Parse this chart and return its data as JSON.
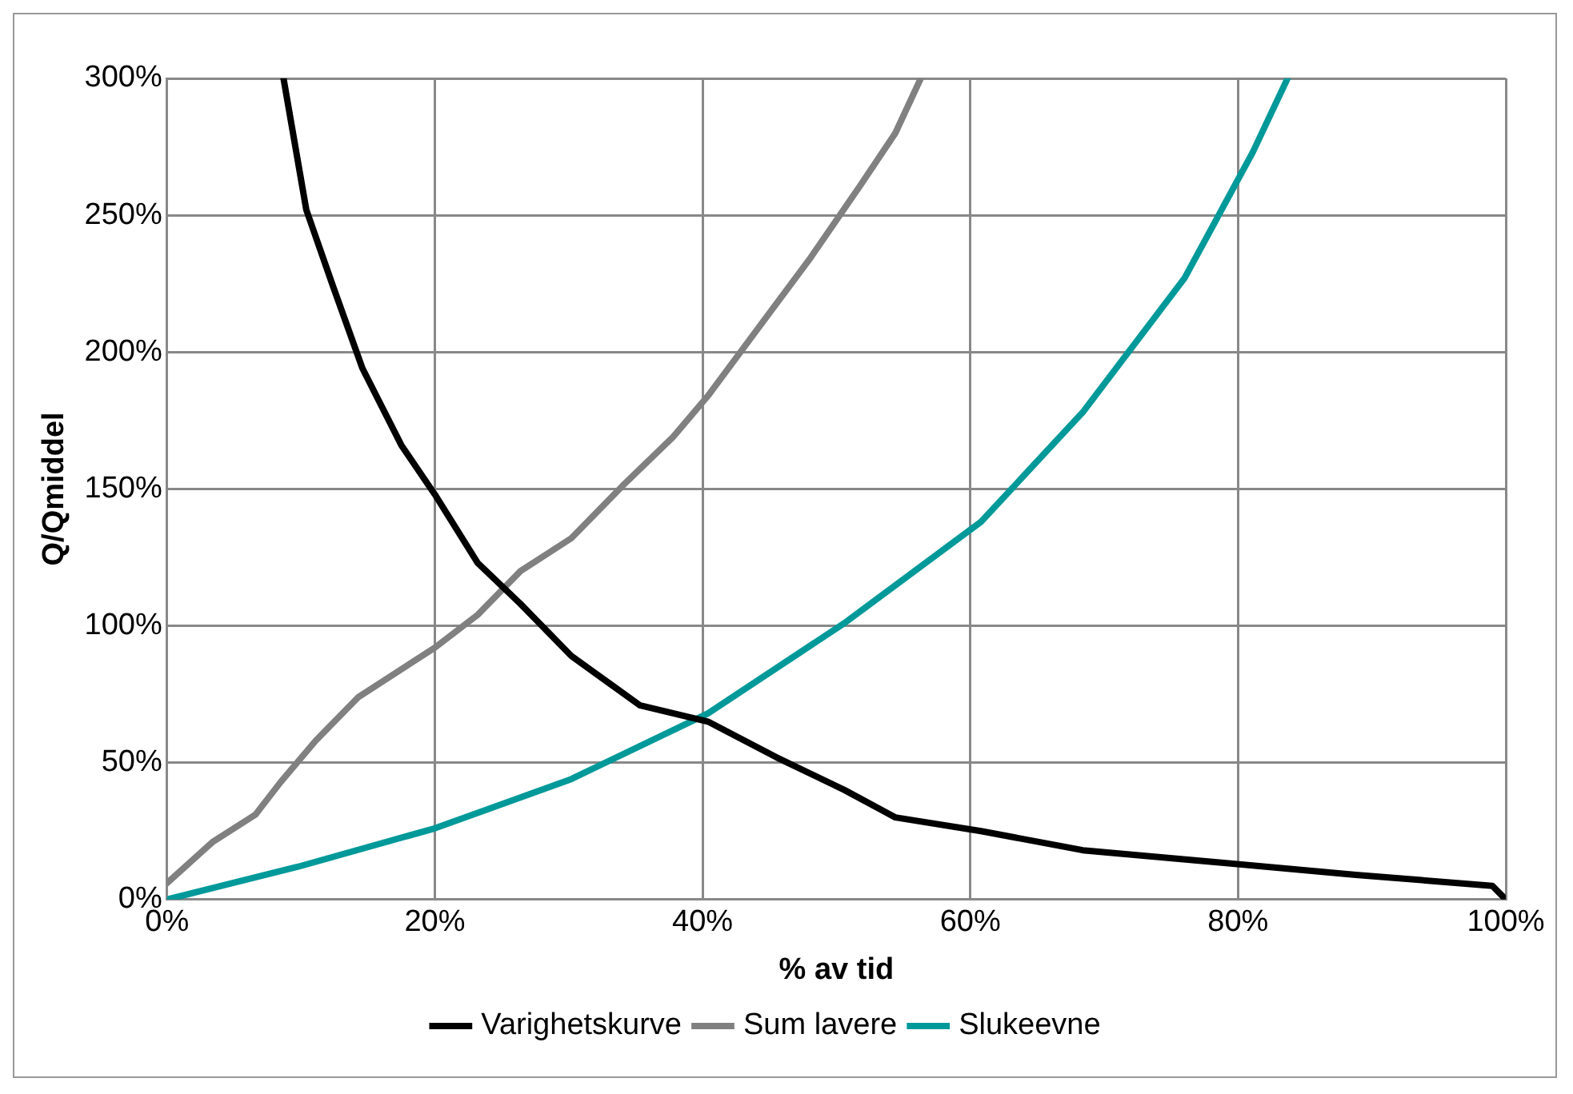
{
  "chart_data": {
    "type": "line",
    "xlabel": "% av tid",
    "ylabel": "Q/Qmiddel",
    "xlim": [
      0,
      100
    ],
    "xticks": [
      {
        "value": 0,
        "label": "0%"
      },
      {
        "value": 20,
        "label": "20%"
      },
      {
        "value": 40,
        "label": "40%"
      },
      {
        "value": 60,
        "label": "60%"
      },
      {
        "value": 80,
        "label": "80%"
      },
      {
        "value": 100,
        "label": "100%"
      }
    ],
    "ylim": [
      0,
      300
    ],
    "yticks": [
      {
        "value": 0,
        "label": "0%"
      },
      {
        "value": 50,
        "label": "50%"
      },
      {
        "value": 100,
        "label": "100%"
      },
      {
        "value": 150,
        "label": "150%"
      },
      {
        "value": 200,
        "label": "200%"
      },
      {
        "value": 250,
        "label": "250%"
      },
      {
        "value": 300,
        "label": "300%"
      }
    ],
    "grid": true,
    "legend": "bottom",
    "marker": "none",
    "line_style": "solid",
    "series": [
      {
        "name": "Varighetskurve",
        "color": "#000000",
        "x": [
          8.7,
          10.4,
          12.4,
          14.6,
          17.5,
          20,
          23.2,
          26.4,
          30.2,
          35.3,
          40.4,
          45.5,
          50.6,
          54.4,
          60.8,
          68.4,
          78.6,
          88.8,
          99,
          100
        ],
        "values": [
          300,
          252,
          224,
          194,
          166,
          148,
          123,
          108,
          89,
          71,
          65,
          52,
          40,
          30,
          25,
          18,
          13.5,
          9,
          5,
          0
        ]
      },
      {
        "name": "Sum lavere",
        "color": "#808080",
        "x": [
          0,
          3.4,
          6.6,
          8.5,
          11.1,
          14.3,
          20,
          23.2,
          26.4,
          30.2,
          34,
          37.8,
          40.4,
          44.2,
          48,
          51.8,
          54.4,
          56.3
        ],
        "values": [
          6,
          21,
          31,
          43,
          58,
          74,
          92,
          104,
          120,
          132,
          151,
          169,
          184,
          209,
          234,
          261,
          280,
          300
        ]
      },
      {
        "name": "Slukeevne",
        "color": "#009999",
        "x": [
          0,
          9.8,
          20,
          30.2,
          40.4,
          50.6,
          60.8,
          68.4,
          76,
          81.1,
          83.7
        ],
        "values": [
          0,
          12,
          26,
          44,
          68,
          101,
          138,
          178,
          227,
          273,
          300
        ]
      }
    ]
  }
}
